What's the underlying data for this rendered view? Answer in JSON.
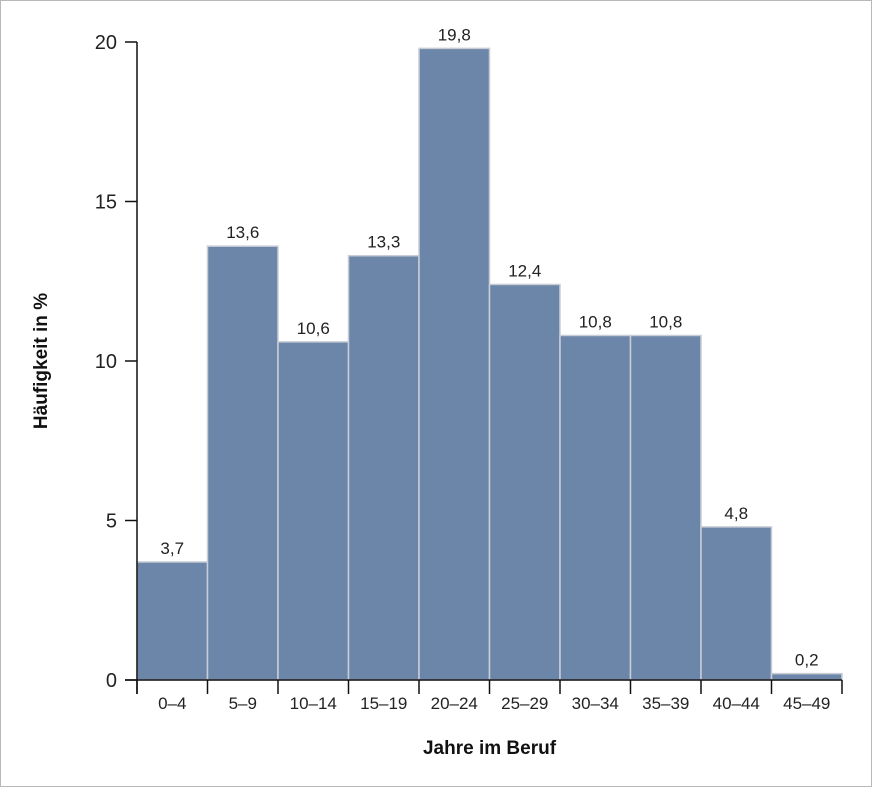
{
  "chart_data": {
    "type": "bar",
    "title": "",
    "xlabel": "Jahre im Beruf",
    "ylabel": "Häufigkeit in %",
    "categories": [
      "0–4",
      "5–9",
      "10–14",
      "15–19",
      "20–24",
      "25–29",
      "30–34",
      "35–39",
      "40–44",
      "45–49"
    ],
    "values": [
      3.7,
      13.6,
      10.6,
      13.3,
      19.8,
      12.4,
      10.8,
      10.8,
      4.8,
      0.2
    ],
    "data_labels": [
      "3,7",
      "13,6",
      "10,6",
      "13,3",
      "19,8",
      "12,4",
      "10,8",
      "10,8",
      "4,8",
      "0,2"
    ],
    "ylim": [
      0,
      20
    ],
    "yticks": [
      0,
      5,
      10,
      15,
      20
    ],
    "ytick_labels": [
      "0",
      "5",
      "10",
      "15",
      "20"
    ],
    "grid": false,
    "legend": "none",
    "bar_color": "#6c86a9",
    "bar_edge_color": "#c9ced6"
  }
}
